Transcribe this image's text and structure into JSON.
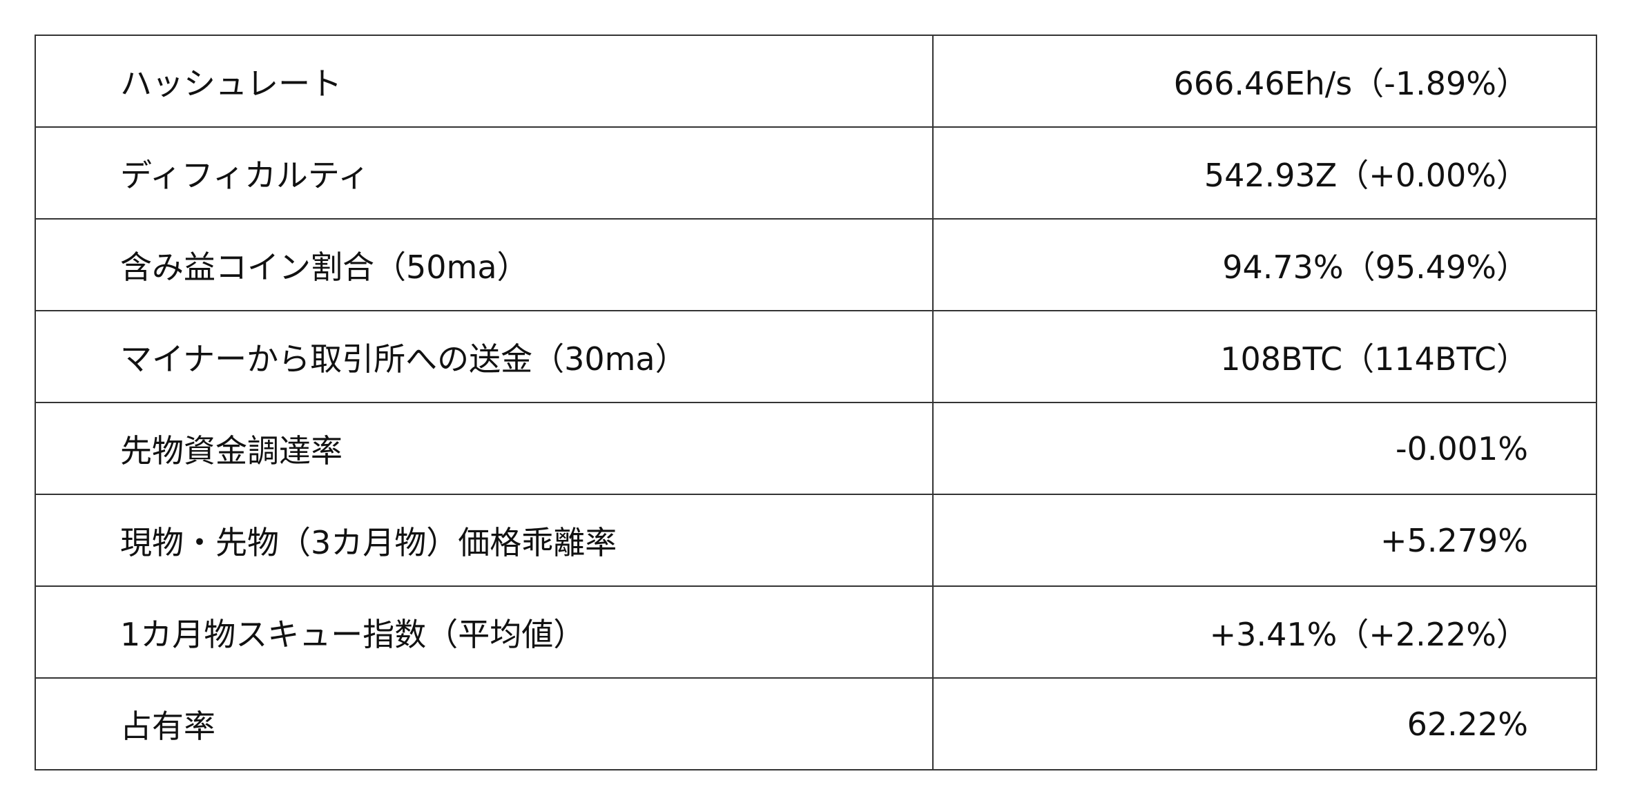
{
  "rows": [
    {
      "label": "ハッシュレート",
      "value": "666.46Eh/s（-1.89%）"
    },
    {
      "label": "ディフィカルティ",
      "value": "542.93Z（+0.00%）"
    },
    {
      "label": "含み益コイン割合（50ma）",
      "value": "94.73%（95.49%）"
    },
    {
      "label": "マイナーから取引所への送金（30ma）",
      "value": "108BTC（114BTC）"
    },
    {
      "label": "先物資金調達率",
      "value": "-0.001%"
    },
    {
      "label": "現物・先物（3カ月物）価格乖離率",
      "value": "+5.279%"
    },
    {
      "label": "1カ月物スキュー指数（平均値）",
      "value": "+3.41%（+2.22%）"
    },
    {
      "label": "占有率",
      "value": "62.22%"
    }
  ]
}
